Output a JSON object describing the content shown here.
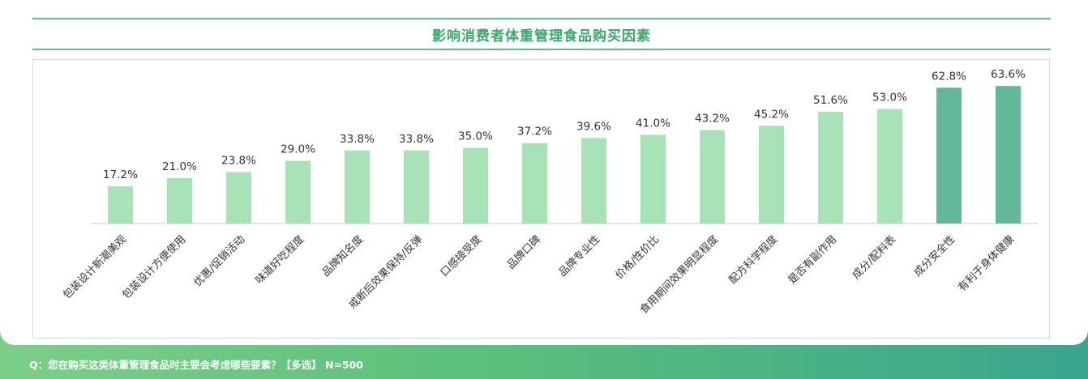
{
  "title": "影响消费者体重管理食品购买因素",
  "footnote": "Q：您在购买这类体重管理食品时主要会考虑哪些要素？【多选】 N=500",
  "colors": {
    "bar_normal": "#a8e3b8",
    "bar_highlight": "#62b898",
    "label_text": "#333333",
    "title": "#3aa86b"
  },
  "chart_data": {
    "type": "bar",
    "title": "影响消费者体重管理食品购买因素",
    "xlabel": "",
    "ylabel": "",
    "ylim": [
      0,
      70
    ],
    "grid": false,
    "categories": [
      "包装设计新潮美观",
      "包装设计方便使用",
      "优惠/促销活动",
      "味道好吃程度",
      "品牌知名度",
      "戒断后效果保持/反弹",
      "口感接受度",
      "品牌口碑",
      "品牌专业性",
      "价格/性价比",
      "食用期间效果明显程度",
      "配方科学程度",
      "是否有副作用",
      "成分/配料表",
      "成分安全性",
      "有利于身体健康"
    ],
    "values": [
      17.2,
      21.0,
      23.8,
      29.0,
      33.8,
      33.8,
      35.0,
      37.2,
      39.6,
      41.0,
      43.2,
      45.2,
      51.6,
      53.0,
      62.8,
      63.6
    ],
    "value_labels": [
      "17.2%",
      "21.0%",
      "23.8%",
      "29.0%",
      "33.8%",
      "33.8%",
      "35.0%",
      "37.2%",
      "39.6%",
      "41.0%",
      "43.2%",
      "45.2%",
      "51.6%",
      "53.0%",
      "62.8%",
      "63.6%"
    ],
    "highlighted": [
      14,
      15
    ]
  }
}
